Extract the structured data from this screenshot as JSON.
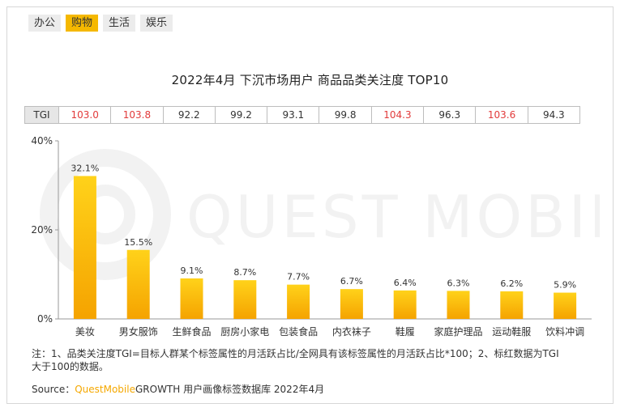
{
  "tabs": [
    {
      "label": "办公",
      "active": false
    },
    {
      "label": "购物",
      "active": true
    },
    {
      "label": "生活",
      "active": false
    },
    {
      "label": "娱乐",
      "active": false
    }
  ],
  "tgi": {
    "header": "TGI",
    "values": [
      "103.0",
      "103.8",
      "92.2",
      "99.2",
      "93.1",
      "99.8",
      "104.3",
      "96.3",
      "103.6",
      "94.3"
    ],
    "highlight": [
      true,
      true,
      false,
      false,
      false,
      false,
      true,
      false,
      true,
      false
    ],
    "highlight_color": "#e23a3a"
  },
  "watermark": "QUEST MOBILE",
  "chart_data": {
    "type": "bar",
    "title": "2022年4月 下沉市场用户 商品品类关注度 TOP10",
    "categories": [
      "美妆",
      "男女服饰",
      "生鲜食品",
      "厨房小家电",
      "包装食品",
      "内衣袜子",
      "鞋履",
      "家庭护理品",
      "运动鞋服",
      "饮料冲调"
    ],
    "values": [
      32.1,
      15.5,
      9.1,
      8.7,
      7.7,
      6.7,
      6.4,
      6.3,
      6.2,
      5.9
    ],
    "value_labels": [
      "32.1%",
      "15.5%",
      "9.1%",
      "8.7%",
      "7.7%",
      "6.7%",
      "6.4%",
      "6.3%",
      "6.2%",
      "5.9%"
    ],
    "yticks": [
      "0%",
      "20%",
      "40%"
    ],
    "ylim": [
      0,
      40
    ],
    "xlabel": "",
    "ylabel": "",
    "grid": false,
    "bar_color_top": "#ffd21a",
    "bar_color_bottom": "#f5a300"
  },
  "note": {
    "line1": "注：1、品类关注度TGI=目标人群某个标签属性的月活跃占比/全网具有该标签属性的月活跃占比*100；2、标红数据为TGI",
    "line2": "大于100的数据。"
  },
  "source": {
    "prefix": "Source：",
    "brand": "QuestMobile",
    "suffix": "GROWTH 用户画像标签数据库 2022年4月"
  }
}
